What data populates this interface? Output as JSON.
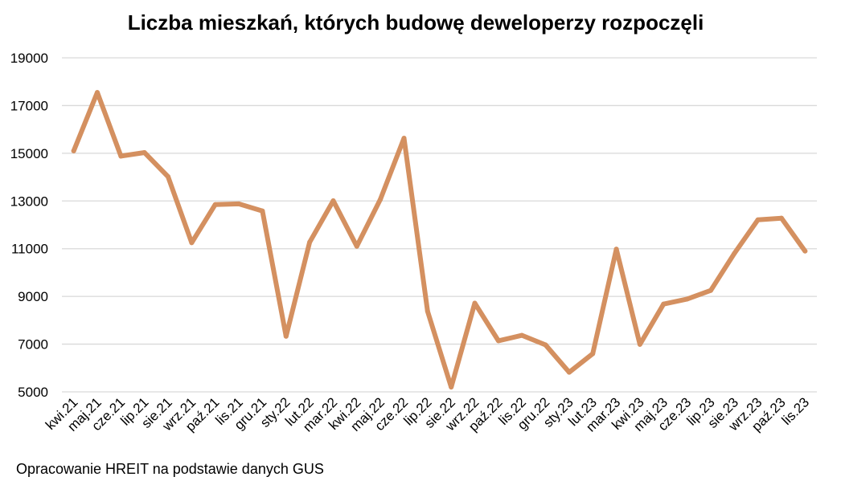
{
  "chart_data": {
    "type": "line",
    "title": "Liczba mieszkań, których budowę deweloperzy rozpoczęli",
    "xlabel": "",
    "ylabel": "",
    "ylim": [
      5000,
      19000
    ],
    "yticks": [
      "5000",
      "7000",
      "9000",
      "11000",
      "13000",
      "15000",
      "17000",
      "19000"
    ],
    "grid": true,
    "legend": "none",
    "categories": [
      "kwi.21",
      "maj.21",
      "cze.21",
      "lip.21",
      "sie.21",
      "wrz.21",
      "paź.21",
      "lis.21",
      "gru.21",
      "sty.22",
      "lut.22",
      "mar.22",
      "kwi.22",
      "maj.22",
      "cze.22",
      "lip.22",
      "sie.22",
      "wrz.22",
      "paź.22",
      "lis.22",
      "gru.22",
      "sty.23",
      "lut.23",
      "mar.23",
      "kwi.23",
      "maj.23",
      "cze.23",
      "lip.23",
      "sie.23",
      "wrz.23",
      "paź.23",
      "lis.23"
    ],
    "series": [
      {
        "color": "#d49060",
        "values": [
          15100,
          17550,
          14880,
          15030,
          14020,
          11250,
          12850,
          12880,
          12580,
          7330,
          11270,
          13010,
          11100,
          13070,
          15630,
          8380,
          5200,
          8720,
          7140,
          7370,
          6970,
          5820,
          6600,
          10980,
          6990,
          8680,
          8890,
          9250,
          10800,
          12210,
          12280,
          10900
        ]
      }
    ]
  },
  "source_note": "Opracowanie HREIT na podstawie danych GUS"
}
